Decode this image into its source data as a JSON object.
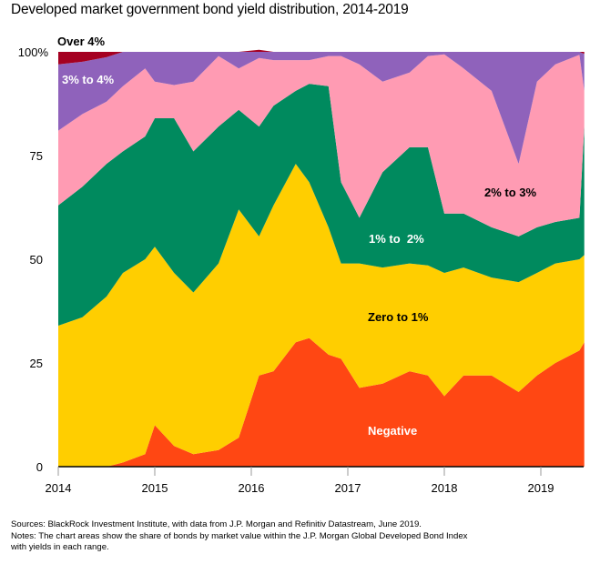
{
  "title": "Developed market government bond yield distribution, 2014-2019",
  "notes": {
    "sources": "Sources: BlackRock Investment Institute, with data from J.P. Morgan and Refinitiv Datastream, June 2019.",
    "notes_line1": "Notes: The chart areas show the share of bonds by market value within the J.P. Morgan Global Developed Bond Index",
    "notes_line2": "with yields in each range."
  },
  "chart_data": {
    "type": "area",
    "stacked": true,
    "title": "Developed market government bond yield distribution, 2014-2019",
    "xlabel": "",
    "ylabel": "",
    "xlim": [
      2014.0,
      2019.45
    ],
    "ylim": [
      0,
      100
    ],
    "x_ticks": [
      2014,
      2015,
      2016,
      2017,
      2018,
      2019
    ],
    "x_tick_labels": [
      "2014",
      "2015",
      "2016",
      "2017",
      "2018",
      "2019"
    ],
    "y_ticks": [
      0,
      25,
      50,
      75,
      100
    ],
    "y_tick_labels": [
      "0",
      "25",
      "50",
      "75",
      "100%"
    ],
    "grid": false,
    "x": [
      2014.0,
      2014.25,
      2014.5,
      2014.67,
      2014.9,
      2015.0,
      2015.2,
      2015.4,
      2015.66,
      2015.87,
      2016.08,
      2016.23,
      2016.46,
      2016.6,
      2016.8,
      2016.93,
      2017.12,
      2017.36,
      2017.64,
      2017.83,
      2018.0,
      2018.2,
      2018.49,
      2018.77,
      2018.96,
      2019.15,
      2019.4,
      2019.45
    ],
    "series": [
      {
        "name": "Negative",
        "color": "#FF4713",
        "label_color": "#ffffff",
        "values": [
          0,
          0,
          0,
          1,
          3,
          10,
          5,
          3,
          4,
          7,
          22,
          23,
          30,
          31,
          27,
          26,
          19,
          20,
          23,
          22,
          17,
          22,
          22,
          18,
          22,
          25,
          28,
          30
        ]
      },
      {
        "name": "Zero to 1%",
        "color": "#FFCE00",
        "label_color": "#000000",
        "values": [
          34,
          36,
          41,
          45.7,
          47,
          43,
          41.7,
          39,
          45,
          55,
          33.5,
          40,
          43,
          37.6,
          30.7,
          23,
          30,
          28,
          26,
          26.5,
          29.7,
          26,
          23.6,
          26.5,
          24.7,
          24,
          22,
          21
        ]
      },
      {
        "name": "1% to 2%",
        "color": "#008A5E",
        "label_color": "#ffffff",
        "values": [
          29,
          31.5,
          32,
          29.3,
          29.6,
          31,
          37.3,
          34,
          33,
          24,
          26.5,
          24,
          17.6,
          23.7,
          34,
          19.6,
          11,
          23,
          28,
          28.5,
          14.3,
          13,
          12.1,
          11,
          11,
          10,
          10,
          31
        ]
      },
      {
        "name": "2% to 3%",
        "color": "#FF9BB3",
        "label_color": "#000000",
        "values": [
          18,
          17.5,
          15,
          15.7,
          16.4,
          8.8,
          8,
          16.8,
          17,
          10,
          16.5,
          11,
          7.4,
          5.7,
          7.3,
          30.4,
          37,
          21.8,
          18,
          22,
          38.4,
          35,
          32.9,
          17.5,
          35.1,
          38,
          39.3,
          8.6
        ]
      },
      {
        "name": "3% to 4%",
        "color": "#8F62BB",
        "label_color": "#ffffff",
        "values": [
          16,
          12.6,
          10.7,
          8.3,
          4,
          7.2,
          8,
          7.2,
          1,
          4,
          2,
          2,
          2,
          2,
          1,
          1,
          3,
          7.2,
          5,
          1,
          0.6,
          4,
          9.4,
          27,
          7.2,
          3,
          0.7,
          8.9
        ]
      },
      {
        "name": "Over 4%",
        "color": "#A50021",
        "label_color": "#000000",
        "values": [
          3,
          2.4,
          1.3,
          0,
          0,
          0,
          0,
          0,
          0,
          0,
          0,
          0,
          0,
          0,
          0,
          0,
          0,
          0,
          0,
          0,
          0,
          0,
          0,
          0,
          0,
          0,
          0,
          0.5
        ]
      }
    ],
    "annotations": [
      {
        "text": "Over 4%",
        "series": "Over 4%"
      },
      {
        "text": "3% to 4%",
        "series": "3% to 4%"
      },
      {
        "text": "2% to 3%",
        "series": "2% to 3%"
      },
      {
        "text": "1% to  2%",
        "series": "1% to 2%"
      },
      {
        "text": "Zero to 1%",
        "series": "Zero to 1%"
      },
      {
        "text": "Negative",
        "series": "Negative"
      }
    ]
  }
}
